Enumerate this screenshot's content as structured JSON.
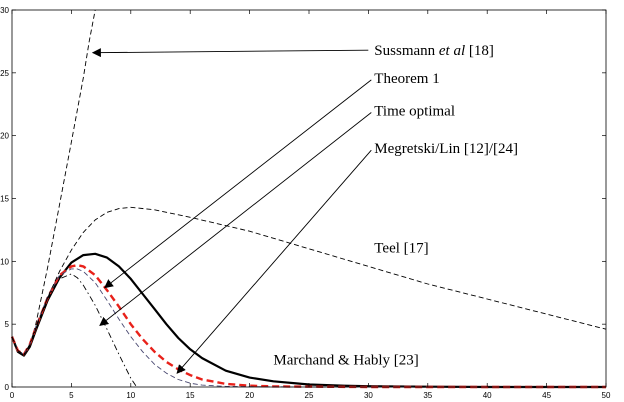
{
  "chart_data": {
    "type": "line",
    "title": "",
    "xlabel": "",
    "ylabel": "",
    "xlim": [
      0,
      50
    ],
    "ylim": [
      0,
      30
    ],
    "xticks": [
      0,
      5,
      10,
      15,
      20,
      25,
      30,
      35,
      40,
      45,
      50
    ],
    "yticks": [
      0,
      5,
      10,
      15,
      20,
      25,
      30
    ],
    "grid": false,
    "legend": "none",
    "series": [
      {
        "name": "Sussmann et al [18]",
        "color": "#000000",
        "style": "dashed",
        "x": [
          0,
          0.5,
          1,
          1.5,
          2,
          3,
          4,
          5,
          6,
          6.5,
          7
        ],
        "y": [
          4.0,
          2.8,
          2.5,
          3.3,
          5.0,
          9.5,
          14.5,
          19.5,
          24.6,
          27.5,
          30.0
        ]
      },
      {
        "name": "Theorem 1",
        "color": "#000000",
        "style": "solid",
        "x": [
          0,
          0.5,
          1,
          1.5,
          2,
          3,
          4,
          5,
          6,
          7,
          8,
          9,
          10,
          11,
          12,
          13,
          14,
          15,
          16,
          18,
          20,
          22,
          25,
          28,
          30,
          35,
          40,
          45,
          50
        ],
        "y": [
          4.0,
          2.8,
          2.5,
          3.2,
          4.5,
          6.9,
          8.7,
          9.9,
          10.5,
          10.6,
          10.3,
          9.6,
          8.6,
          7.4,
          6.2,
          5.0,
          3.9,
          3.0,
          2.3,
          1.3,
          0.75,
          0.45,
          0.2,
          0.1,
          0.06,
          0.02,
          0.0,
          0.0,
          0.0
        ]
      },
      {
        "name": "Time optimal",
        "color": "#e8211a",
        "style": "dashed",
        "x": [
          0,
          0.5,
          1,
          1.5,
          2,
          3,
          4,
          5,
          5.5,
          6,
          7,
          8,
          9,
          10,
          11,
          12,
          13,
          14,
          15,
          16,
          18,
          20,
          22,
          25,
          30,
          35,
          40,
          45,
          50
        ],
        "y": [
          4.0,
          2.9,
          2.6,
          3.4,
          4.7,
          7.1,
          8.9,
          9.6,
          9.7,
          9.6,
          8.9,
          7.7,
          6.4,
          5.0,
          3.8,
          2.8,
          2.0,
          1.4,
          0.95,
          0.6,
          0.25,
          0.1,
          0.05,
          0.02,
          0.0,
          0.0,
          0.0,
          0.0,
          0.0
        ]
      },
      {
        "name": "Megretski/Lin [12]/[24]",
        "color": "#4a4a72",
        "style": "dashed",
        "x": [
          0,
          0.5,
          1,
          1.5,
          2,
          3,
          4,
          5,
          5.5,
          6,
          7,
          8,
          9,
          10,
          11,
          12,
          13,
          14,
          15,
          16,
          18,
          20,
          25,
          30,
          35,
          40,
          45,
          50
        ],
        "y": [
          4.0,
          2.9,
          2.6,
          3.4,
          4.8,
          7.2,
          8.9,
          9.4,
          9.4,
          9.2,
          8.3,
          6.9,
          5.4,
          4.0,
          2.8,
          1.8,
          1.1,
          0.6,
          0.3,
          0.15,
          0.05,
          0.02,
          0.0,
          0.0,
          0.0,
          0.0,
          0.0,
          0.0
        ]
      },
      {
        "name": "Teel [17]",
        "color": "#000000",
        "style": "dashed",
        "x": [
          0,
          0.5,
          1,
          1.5,
          2,
          3,
          4,
          5,
          6,
          7,
          8,
          9,
          10,
          12,
          15,
          20,
          25,
          30,
          35,
          40,
          45,
          50
        ],
        "y": [
          4.0,
          2.8,
          2.5,
          3.3,
          4.6,
          7.1,
          9.2,
          10.9,
          12.3,
          13.3,
          13.9,
          14.2,
          14.3,
          14.1,
          13.5,
          12.4,
          11.0,
          9.6,
          8.2,
          7.0,
          5.8,
          4.6
        ]
      },
      {
        "name": "Marchand & Hably [23]",
        "color": "#000000",
        "style": "dashdot",
        "x": [
          0,
          0.5,
          1,
          1.5,
          2,
          3,
          4,
          5,
          5.5,
          6,
          7,
          8,
          9,
          10,
          10.5
        ],
        "y": [
          4.0,
          2.9,
          2.6,
          3.4,
          4.8,
          7.1,
          8.6,
          9.0,
          8.7,
          8.1,
          6.5,
          4.6,
          2.6,
          0.7,
          0.0
        ]
      }
    ],
    "annotations": [
      {
        "text": "Sussmann et al [18]",
        "text_x": 30.5,
        "text_y": 26.8,
        "arrow_to": [
          6.8,
          26.6
        ]
      },
      {
        "text": "Theorem 1",
        "text_x": 30.5,
        "text_y": 24.6,
        "arrow_to": [
          7.8,
          7.9
        ]
      },
      {
        "text": "Time optimal",
        "text_x": 30.5,
        "text_y": 22.0,
        "arrow_to": [
          7.4,
          4.9
        ]
      },
      {
        "text": "Megretski/Lin [12]/[24]",
        "text_x": 30.5,
        "text_y": 19.0,
        "arrow_to": [
          13.9,
          1.1
        ]
      },
      {
        "text": "Teel [17]",
        "text_x": 30.5,
        "text_y": 11.1,
        "arrow_to": null
      },
      {
        "text": "Marchand & Hably [23]",
        "text_x": 22.0,
        "text_y": 2.2,
        "arrow_to": null
      }
    ],
    "annotation_parts": {
      "sussmann_a": "Sussmann ",
      "sussmann_b": "et al",
      "sussmann_c": " [18]"
    }
  }
}
